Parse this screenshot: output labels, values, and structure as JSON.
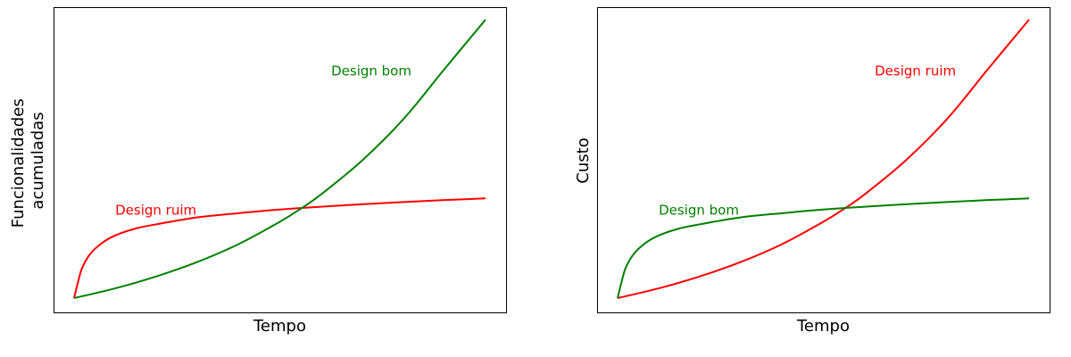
{
  "chart_data": [
    {
      "type": "line",
      "title": "",
      "xlabel": "Tempo",
      "ylabel": "Funcionalidades\nacumuladas",
      "grid": false,
      "xticks": false,
      "yticks": false,
      "xlim": [
        0,
        1
      ],
      "ylim": [
        0,
        1
      ],
      "series": [
        {
          "name": "Design ruim",
          "color": "#ff0000",
          "shape": "logarithmic",
          "x": [
            0.0,
            0.01,
            0.02,
            0.04,
            0.07,
            0.1,
            0.15,
            0.2,
            0.3,
            0.4,
            0.5,
            0.6,
            0.7,
            0.8,
            0.9,
            1.0
          ],
          "y": [
            0.0,
            0.06,
            0.11,
            0.16,
            0.2,
            0.225,
            0.25,
            0.265,
            0.29,
            0.305,
            0.318,
            0.328,
            0.337,
            0.345,
            0.352,
            0.358
          ]
        },
        {
          "name": "Design bom",
          "color": "#008000",
          "shape": "exponential",
          "x": [
            0.0,
            0.1,
            0.2,
            0.3,
            0.4,
            0.5,
            0.55,
            0.6,
            0.7,
            0.8,
            0.9,
            1.0
          ],
          "y": [
            0.0,
            0.035,
            0.078,
            0.13,
            0.194,
            0.274,
            0.32,
            0.372,
            0.494,
            0.642,
            0.822,
            1.0
          ]
        }
      ],
      "annotations": [
        {
          "text": "Design ruim",
          "color": "#ff0000",
          "x": 0.1,
          "y": 0.3
        },
        {
          "text": "Design bom",
          "color": "#008000",
          "x": 0.625,
          "y": 0.8
        }
      ]
    },
    {
      "type": "line",
      "title": "",
      "xlabel": "Tempo",
      "ylabel": "Custo",
      "grid": false,
      "xticks": false,
      "yticks": false,
      "xlim": [
        0,
        1
      ],
      "ylim": [
        0,
        1
      ],
      "series": [
        {
          "name": "Design ruim",
          "color": "#ff0000",
          "shape": "exponential",
          "x": [
            0.0,
            0.1,
            0.2,
            0.3,
            0.4,
            0.5,
            0.55,
            0.6,
            0.7,
            0.8,
            0.9,
            1.0
          ],
          "y": [
            0.0,
            0.035,
            0.078,
            0.13,
            0.194,
            0.274,
            0.32,
            0.372,
            0.494,
            0.642,
            0.822,
            1.0
          ]
        },
        {
          "name": "Design bom",
          "color": "#008000",
          "shape": "logarithmic",
          "x": [
            0.0,
            0.01,
            0.02,
            0.04,
            0.07,
            0.1,
            0.15,
            0.2,
            0.3,
            0.4,
            0.5,
            0.6,
            0.7,
            0.8,
            0.9,
            1.0
          ],
          "y": [
            0.0,
            0.06,
            0.11,
            0.16,
            0.2,
            0.225,
            0.25,
            0.265,
            0.29,
            0.305,
            0.318,
            0.328,
            0.337,
            0.345,
            0.352,
            0.358
          ]
        }
      ],
      "annotations": [
        {
          "text": "Design ruim",
          "color": "#ff0000",
          "x": 0.625,
          "y": 0.8
        },
        {
          "text": "Design bom",
          "color": "#008000",
          "x": 0.1,
          "y": 0.3
        }
      ]
    }
  ]
}
